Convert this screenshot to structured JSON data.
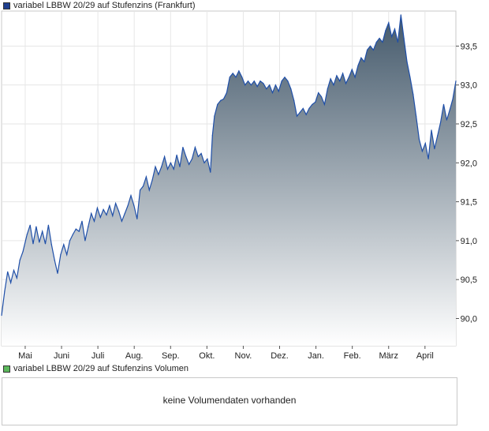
{
  "legend": {
    "price_label": "variabel LBBW 20/29 auf Stufenzins (Frankfurt)",
    "volume_label": "variabel LBBW 20/29 auf Stufenzins Volumen",
    "price_color": "#1f3f8f",
    "volume_color": "#5cb85c"
  },
  "volume": {
    "message": "keine Volumendaten vorhanden"
  },
  "chart_data": {
    "type": "area",
    "title": "",
    "xlabel": "",
    "ylabel": "",
    "ylim": [
      89.65,
      93.95
    ],
    "yticks": [
      "90,0",
      "90,5",
      "91,0",
      "91,5",
      "92,0",
      "92,5",
      "93,0",
      "93,5"
    ],
    "months": [
      "Mai",
      "Juni",
      "Juli",
      "Aug.",
      "Sep.",
      "Okt.",
      "Nov.",
      "Dez.",
      "Jan.",
      "Feb.",
      "März",
      "April"
    ],
    "grid": true,
    "line_color": "#1f4fa8",
    "fill_top_color": "#44596b",
    "fill_bottom_color": "#ffffff",
    "series": [
      {
        "values": [
          [
            0.0,
            90.04
          ],
          [
            0.3,
            90.35
          ],
          [
            0.6,
            90.6
          ],
          [
            0.9,
            90.46
          ],
          [
            1.2,
            90.62
          ],
          [
            1.5,
            90.52
          ],
          [
            1.8,
            90.75
          ],
          [
            2.1,
            90.86
          ],
          [
            2.5,
            91.08
          ],
          [
            2.8,
            91.2
          ],
          [
            3.1,
            90.96
          ],
          [
            3.4,
            91.18
          ],
          [
            3.7,
            90.98
          ],
          [
            4.0,
            91.12
          ],
          [
            4.3,
            90.96
          ],
          [
            4.6,
            91.2
          ],
          [
            4.9,
            90.95
          ],
          [
            5.2,
            90.75
          ],
          [
            5.5,
            90.58
          ],
          [
            5.8,
            90.82
          ],
          [
            6.1,
            90.95
          ],
          [
            6.4,
            90.82
          ],
          [
            6.7,
            91.0
          ],
          [
            7.0,
            91.08
          ],
          [
            7.3,
            91.15
          ],
          [
            7.6,
            91.12
          ],
          [
            7.9,
            91.25
          ],
          [
            8.2,
            91.0
          ],
          [
            8.5,
            91.18
          ],
          [
            8.8,
            91.35
          ],
          [
            9.1,
            91.25
          ],
          [
            9.4,
            91.42
          ],
          [
            9.7,
            91.3
          ],
          [
            10.0,
            91.4
          ],
          [
            10.3,
            91.33
          ],
          [
            10.6,
            91.45
          ],
          [
            10.9,
            91.32
          ],
          [
            11.2,
            91.48
          ],
          [
            11.5,
            91.38
          ],
          [
            11.8,
            91.25
          ],
          [
            12.1,
            91.35
          ],
          [
            12.4,
            91.45
          ],
          [
            12.7,
            91.58
          ],
          [
            13.0,
            91.45
          ],
          [
            13.3,
            91.28
          ],
          [
            13.6,
            91.65
          ],
          [
            13.9,
            91.7
          ],
          [
            14.2,
            91.82
          ],
          [
            14.5,
            91.65
          ],
          [
            14.8,
            91.78
          ],
          [
            15.1,
            91.95
          ],
          [
            15.4,
            91.85
          ],
          [
            15.7,
            91.95
          ],
          [
            16.0,
            92.08
          ],
          [
            16.3,
            91.92
          ],
          [
            16.6,
            92.0
          ],
          [
            16.9,
            91.92
          ],
          [
            17.2,
            92.1
          ],
          [
            17.5,
            91.95
          ],
          [
            17.8,
            92.2
          ],
          [
            18.1,
            92.08
          ],
          [
            18.4,
            91.98
          ],
          [
            18.7,
            92.05
          ],
          [
            19.0,
            92.2
          ],
          [
            19.3,
            92.08
          ],
          [
            19.6,
            92.12
          ],
          [
            19.9,
            92.0
          ],
          [
            20.2,
            92.05
          ],
          [
            20.5,
            91.88
          ],
          [
            20.7,
            92.35
          ],
          [
            20.9,
            92.6
          ],
          [
            21.2,
            92.75
          ],
          [
            21.5,
            92.8
          ],
          [
            21.8,
            92.82
          ],
          [
            22.1,
            92.9
          ],
          [
            22.4,
            93.1
          ],
          [
            22.7,
            93.15
          ],
          [
            23.0,
            93.1
          ],
          [
            23.3,
            93.18
          ],
          [
            23.6,
            93.1
          ],
          [
            23.9,
            93.0
          ],
          [
            24.2,
            93.05
          ],
          [
            24.5,
            93.0
          ],
          [
            24.8,
            93.05
          ],
          [
            25.1,
            92.98
          ],
          [
            25.4,
            93.05
          ],
          [
            25.7,
            93.02
          ],
          [
            26.0,
            92.95
          ],
          [
            26.3,
            93.0
          ],
          [
            26.6,
            92.9
          ],
          [
            26.9,
            93.0
          ],
          [
            27.2,
            92.92
          ],
          [
            27.5,
            93.05
          ],
          [
            27.8,
            93.1
          ],
          [
            28.1,
            93.05
          ],
          [
            28.4,
            92.95
          ],
          [
            28.7,
            92.8
          ],
          [
            29.0,
            92.6
          ],
          [
            29.3,
            92.65
          ],
          [
            29.6,
            92.7
          ],
          [
            29.9,
            92.62
          ],
          [
            30.2,
            92.7
          ],
          [
            30.5,
            92.75
          ],
          [
            30.8,
            92.78
          ],
          [
            31.1,
            92.9
          ],
          [
            31.4,
            92.85
          ],
          [
            31.7,
            92.75
          ],
          [
            32.0,
            92.95
          ],
          [
            32.3,
            93.08
          ],
          [
            32.6,
            93.0
          ],
          [
            32.9,
            93.12
          ],
          [
            33.2,
            93.05
          ],
          [
            33.5,
            93.15
          ],
          [
            33.8,
            93.02
          ],
          [
            34.1,
            93.1
          ],
          [
            34.4,
            93.2
          ],
          [
            34.7,
            93.1
          ],
          [
            35.0,
            93.25
          ],
          [
            35.3,
            93.35
          ],
          [
            35.6,
            93.3
          ],
          [
            35.9,
            93.45
          ],
          [
            36.2,
            93.5
          ],
          [
            36.5,
            93.45
          ],
          [
            36.8,
            93.55
          ],
          [
            37.1,
            93.6
          ],
          [
            37.4,
            93.55
          ],
          [
            37.7,
            93.7
          ],
          [
            38.0,
            93.8
          ],
          [
            38.3,
            93.62
          ],
          [
            38.6,
            93.72
          ],
          [
            38.9,
            93.55
          ],
          [
            39.2,
            93.9
          ],
          [
            39.5,
            93.6
          ],
          [
            39.8,
            93.3
          ],
          [
            40.1,
            93.1
          ],
          [
            40.4,
            92.88
          ],
          [
            40.7,
            92.6
          ],
          [
            41.0,
            92.3
          ],
          [
            41.3,
            92.15
          ],
          [
            41.6,
            92.25
          ],
          [
            41.9,
            92.05
          ],
          [
            42.2,
            92.42
          ],
          [
            42.5,
            92.18
          ],
          [
            42.8,
            92.35
          ],
          [
            43.1,
            92.52
          ],
          [
            43.4,
            92.75
          ],
          [
            43.7,
            92.55
          ],
          [
            44.0,
            92.68
          ],
          [
            44.3,
            92.82
          ],
          [
            44.6,
            93.05
          ]
        ]
      }
    ]
  }
}
